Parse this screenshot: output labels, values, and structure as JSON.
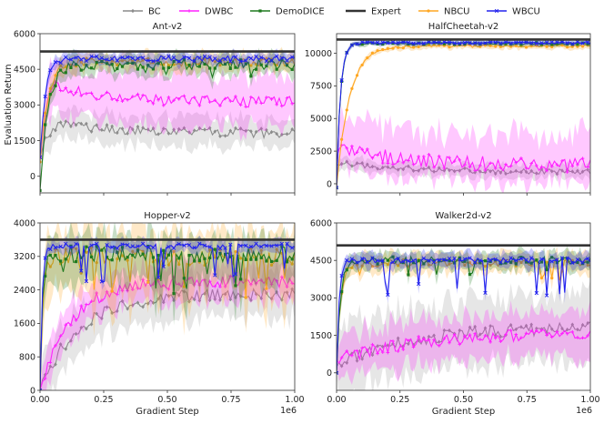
{
  "chart_data": {
    "type": "line",
    "legend": {
      "placement": "top",
      "entries": [
        {
          "name": "BC",
          "color": "#8c8c8c",
          "marker": "diamond"
        },
        {
          "name": "DWBC",
          "color": "#ff22ff",
          "marker": "plus"
        },
        {
          "name": "DemoDICE",
          "color": "#1f7a1f",
          "marker": "square"
        },
        {
          "name": "Expert",
          "color": "#333333",
          "marker": "none"
        },
        {
          "name": "NBCU",
          "color": "#ffa722",
          "marker": "circle"
        },
        {
          "name": "WBCU",
          "color": "#2222ee",
          "marker": "x"
        }
      ]
    },
    "x_tick_labels": [
      "0.00",
      "0.25",
      "0.50",
      "0.75",
      "1.00"
    ],
    "x_scale_label": "1e6",
    "xlabel": "Gradient Step",
    "ylabel": "Evaluation Return",
    "xlim": [
      0,
      1000000
    ],
    "n_points": 100,
    "panels": [
      {
        "title": "Ant-v2",
        "ylim": [
          -700,
          6000
        ],
        "yticks": [
          0,
          1500,
          3000,
          4500,
          6000
        ],
        "y_tick_labels": [
          "0",
          "1500",
          "3000",
          "4500",
          "6000"
        ],
        "show_xlabel": false,
        "expert": 5250,
        "series": [
          {
            "name": "WBCU",
            "start": 800,
            "plateau": 4950,
            "rise": 0.02,
            "noise": 120,
            "band": 250,
            "band_low": 1.0,
            "dips": 0,
            "dip_depth": 0,
            "hollow_after": 0.0
          },
          {
            "name": "NBCU",
            "start": 600,
            "plateau": 4800,
            "rise": 0.03,
            "noise": 180,
            "band": 350,
            "band_low": 1.0,
            "dips": 0,
            "dip_depth": 0,
            "hollow_after": 0.0
          },
          {
            "name": "DemoDICE",
            "start": -600,
            "plateau": 4700,
            "rise": 0.03,
            "noise": 220,
            "band": 400,
            "band_low": 1.0,
            "dips": 5,
            "dip_depth": 600,
            "hollow_after": 0.0
          },
          {
            "name": "DWBC",
            "start": 800,
            "plateau": 3100,
            "peak": 3800,
            "peak_at": 0.05,
            "rise": 0.02,
            "noise": 250,
            "band": 1100,
            "band_low": 1.0,
            "dips": 0,
            "dip_depth": 0,
            "hollow_after": 0.0
          },
          {
            "name": "BC",
            "start": 800,
            "plateau": 1800,
            "peak": 2200,
            "peak_at": 0.08,
            "rise": 0.03,
            "noise": 200,
            "band": 600,
            "band_low": 1.0,
            "dips": 0,
            "dip_depth": 0,
            "hollow_after": 0.0
          }
        ]
      },
      {
        "title": "HalfCheetah-v2",
        "ylim": [
          -700,
          11500
        ],
        "yticks": [
          0,
          2500,
          5000,
          7500,
          10000
        ],
        "y_tick_labels": [
          "0",
          "2500",
          "5000",
          "7500",
          "10000"
        ],
        "show_xlabel": false,
        "expert": 11050,
        "series": [
          {
            "name": "WBCU",
            "start": -300,
            "plateau": 10800,
            "rise": 0.015,
            "noise": 80,
            "band": 180,
            "band_low": 1.0,
            "dips": 0,
            "dip_depth": 0,
            "hollow_after": 0.0
          },
          {
            "name": "NBCU",
            "start": -300,
            "plateau": 10550,
            "rise": 0.05,
            "noise": 100,
            "band": 220,
            "band_low": 1.0,
            "dips": 0,
            "dip_depth": 0,
            "hollow_after": 0.0
          },
          {
            "name": "DemoDICE",
            "start": -300,
            "plateau": 10750,
            "rise": 0.015,
            "noise": 80,
            "band": 180,
            "band_low": 1.0,
            "dips": 0,
            "dip_depth": 0,
            "hollow_after": 0.0
          },
          {
            "name": "DWBC",
            "start": 2000,
            "plateau": 1400,
            "peak": 2800,
            "peak_at": 0.02,
            "rise": 0.02,
            "noise": 550,
            "band": 2300,
            "band_low": 0.6,
            "dips": 0,
            "dip_depth": 0,
            "hollow_after": 0.0
          },
          {
            "name": "BC",
            "start": 1500,
            "plateau": 900,
            "peak": 1600,
            "peak_at": 0.02,
            "rise": 0.02,
            "noise": 200,
            "band": 500,
            "band_low": 1.0,
            "dips": 0,
            "dip_depth": 0,
            "hollow_after": 0.0
          }
        ]
      },
      {
        "title": "Hopper-v2",
        "ylim": [
          0,
          4000
        ],
        "yticks": [
          0,
          800,
          1600,
          2400,
          3200,
          4000
        ],
        "y_tick_labels": [
          "0",
          "800",
          "1600",
          "2400",
          "3200",
          "4000"
        ],
        "show_xlabel": true,
        "expert": 3600,
        "series": [
          {
            "name": "WBCU",
            "start": 0,
            "plateau": 3450,
            "rise": 0.008,
            "noise": 60,
            "band": 150,
            "band_low": 1.0,
            "dips": 12,
            "dip_depth": 900,
            "hollow_after": 0.0
          },
          {
            "name": "NBCU",
            "start": 0,
            "plateau": 3200,
            "rise": 0.01,
            "noise": 220,
            "band": 700,
            "band_low": 1.3,
            "dips": 14,
            "dip_depth": 800,
            "hollow_after": 0.0
          },
          {
            "name": "DemoDICE",
            "start": 0,
            "plateau": 3250,
            "rise": 0.01,
            "noise": 200,
            "band": 500,
            "band_low": 1.3,
            "dips": 10,
            "dip_depth": 900,
            "hollow_after": 0.0
          },
          {
            "name": "DWBC",
            "start": 0,
            "plateau": 2600,
            "rise": 0.12,
            "noise": 150,
            "band": 450,
            "band_low": 1.0,
            "dips": 0,
            "dip_depth": 0,
            "hollow_after": 0.0
          },
          {
            "name": "BC",
            "start": 0,
            "plateau": 2300,
            "rise": 0.15,
            "noise": 150,
            "band": 550,
            "band_low": 1.0,
            "dips": 0,
            "dip_depth": 0,
            "hollow_after": 0.0
          }
        ]
      },
      {
        "title": "Walker2d-v2",
        "ylim": [
          -700,
          6000
        ],
        "yticks": [
          0,
          1500,
          3000,
          4500,
          6000
        ],
        "y_tick_labels": [
          "0",
          "1500",
          "3000",
          "4500",
          "6000"
        ],
        "show_xlabel": true,
        "expert": 5100,
        "series": [
          {
            "name": "WBCU",
            "start": 0,
            "plateau": 4500,
            "rise": 0.01,
            "noise": 100,
            "band": 300,
            "band_low": 1.0,
            "dips": 9,
            "dip_depth": 1500,
            "hollow_after": 0.0
          },
          {
            "name": "NBCU",
            "start": 0,
            "plateau": 4400,
            "rise": 0.015,
            "noise": 150,
            "band": 400,
            "band_low": 1.0,
            "dips": 6,
            "dip_depth": 900,
            "hollow_after": 0.0
          },
          {
            "name": "DemoDICE",
            "start": 0,
            "plateau": 4500,
            "rise": 0.015,
            "noise": 150,
            "band": 350,
            "band_low": 1.0,
            "dips": 5,
            "dip_depth": 900,
            "hollow_after": 0.0
          },
          {
            "name": "DWBC",
            "start": 500,
            "plateau": 1600,
            "rise": 0.3,
            "noise": 250,
            "band": 900,
            "band_low": 1.0,
            "dips": 0,
            "dip_depth": 0,
            "hollow_after": 0.0
          },
          {
            "name": "BC",
            "start": 300,
            "plateau": 1850,
            "rise": 0.3,
            "noise": 250,
            "band": 1300,
            "band_low": 1.0,
            "dips": 0,
            "dip_depth": 0,
            "hollow_after": 0.0
          }
        ]
      }
    ]
  }
}
